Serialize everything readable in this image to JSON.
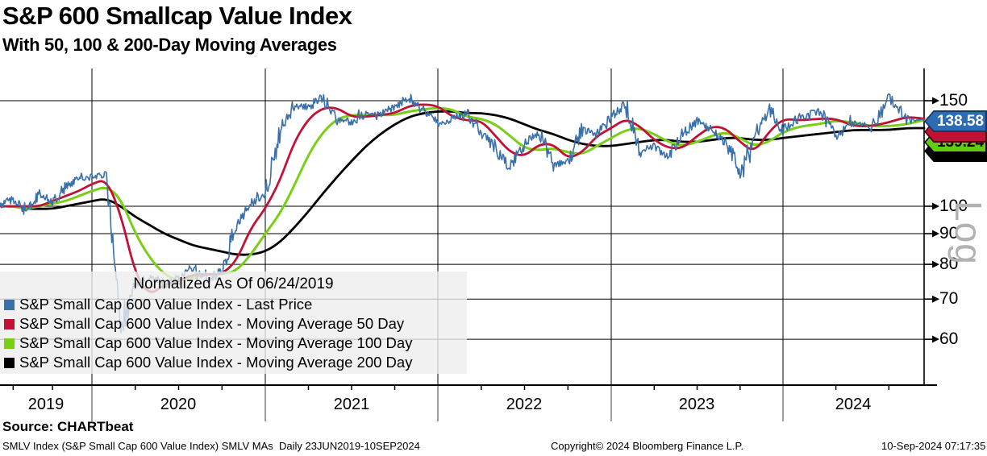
{
  "title": "S&P 600 Smallcap Value Index",
  "subtitle": "With 50, 100 & 200-Day Moving Averages",
  "source_label": "Source: CHARTbeat",
  "footer": {
    "left": "SMLV Index (S&P Small Cap 600 Value Index) SMLV MAs  Daily 23JUN2019-10SEP2024",
    "center": "Copyright© 2024 Bloomberg Finance L.P.",
    "right": "10-Sep-2024 07:17:35"
  },
  "axis": {
    "scale_label": "Log",
    "y_ticks": [
      "150",
      "100",
      "90",
      "80",
      "70",
      "60"
    ],
    "x_labels": [
      "2019",
      "2020",
      "2021",
      "2022",
      "2023",
      "2024"
    ]
  },
  "legend": {
    "header": "Normalized As Of 06/24/2019",
    "items": [
      {
        "label": "S&P Small Cap 600 Value Index - Last Price",
        "color": "#3a70a9"
      },
      {
        "label": "S&P Small Cap 600 Value Index - Moving Average 50 Day",
        "color": "#c11236"
      },
      {
        "label": "S&P Small Cap 600 Value Index - Moving Average 100 Day",
        "color": "#79cf16"
      },
      {
        "label": "S&P Small Cap 600 Value Index - Moving Average 200 Day",
        "color": "#000000"
      }
    ]
  },
  "badges": [
    {
      "value": "138.58",
      "fill": "#2d6cb4",
      "border": "#0e3a66",
      "text_color": "#ffffff"
    },
    {
      "value": "",
      "fill": "#c11236",
      "border": "#40050f",
      "text_color": "#ffffff"
    },
    {
      "value": "139.24",
      "fill": "#62cc0e",
      "border": "#000000",
      "text_color": "#000000"
    },
    {
      "value": "",
      "fill": "#000000",
      "border": "#000000",
      "text_color": "#ffffff"
    }
  ],
  "chart_data": {
    "type": "line",
    "yscale": "log",
    "normalized_note": "Normalized As Of 06/24/2019 = 100",
    "date_range": "23JUN2019-10SEP2024",
    "ylim": [
      50,
      168
    ],
    "y_ticks": [
      150,
      100,
      90,
      80,
      70,
      60
    ],
    "x_year_labels": [
      "2019",
      "2020",
      "2021",
      "2022",
      "2023",
      "2024"
    ],
    "x_monthly": [
      "2019-06",
      "2019-07",
      "2019-08",
      "2019-09",
      "2019-10",
      "2019-11",
      "2019-12",
      "2020-01",
      "2020-02",
      "2020-03",
      "2020-04",
      "2020-05",
      "2020-06",
      "2020-07",
      "2020-08",
      "2020-09",
      "2020-10",
      "2020-11",
      "2020-12",
      "2021-01",
      "2021-02",
      "2021-03",
      "2021-04",
      "2021-05",
      "2021-06",
      "2021-07",
      "2021-08",
      "2021-09",
      "2021-10",
      "2021-11",
      "2021-12",
      "2022-01",
      "2022-02",
      "2022-03",
      "2022-04",
      "2022-05",
      "2022-06",
      "2022-07",
      "2022-08",
      "2022-09",
      "2022-10",
      "2022-11",
      "2022-12",
      "2023-01",
      "2023-02",
      "2023-03",
      "2023-04",
      "2023-05",
      "2023-06",
      "2023-07",
      "2023-08",
      "2023-09",
      "2023-10",
      "2023-11",
      "2023-12",
      "2024-01",
      "2024-02",
      "2024-03",
      "2024-04",
      "2024-05",
      "2024-06",
      "2024-07",
      "2024-08",
      "2024-09"
    ],
    "series": [
      {
        "name": "S&P Small Cap 600 Value Index - Last Price",
        "color": "#3a70a9",
        "width": 1.6,
        "jitter": true,
        "values": [
          100,
          103,
          97,
          105,
          101,
          108,
          111,
          112,
          113,
          62,
          73,
          77,
          74,
          76,
          79,
          75,
          78,
          93,
          101,
          105,
          133,
          147,
          146,
          152,
          140,
          138,
          143,
          142,
          147,
          152,
          144,
          137,
          140,
          143,
          133,
          124,
          116,
          127,
          133,
          117,
          119,
          135,
          131,
          141,
          148,
          124,
          126,
          121,
          132,
          139,
          134,
          128,
          115,
          131,
          146,
          134,
          141,
          144,
          131,
          138,
          135,
          152,
          140,
          138.58
        ]
      },
      {
        "name": "S&P Small Cap 600 Value Index - Moving Average 50 Day",
        "color": "#c11236",
        "width": 2.8,
        "jitter": false,
        "values": [
          100,
          100,
          100,
          100,
          102,
          104,
          106,
          109,
          111,
          97,
          77,
          71,
          74,
          75,
          77,
          77,
          77,
          81,
          92,
          99,
          110,
          128,
          140,
          146,
          146,
          141,
          141,
          142,
          143,
          147,
          148,
          147,
          141,
          139,
          139,
          131,
          123,
          121,
          127,
          127,
          120,
          123,
          131,
          135,
          140,
          136,
          129,
          125,
          125,
          131,
          136,
          135,
          128,
          123,
          133,
          140,
          139,
          140,
          140,
          136,
          136,
          138,
          141,
          140
        ]
      },
      {
        "name": "S&P Small Cap 600 Value Index - Moving Average 100 Day",
        "color": "#79cf16",
        "width": 3,
        "jitter": false,
        "values": [
          100,
          100,
          99,
          100,
          101,
          102,
          104,
          106,
          108,
          103,
          90,
          82,
          77,
          75,
          76,
          77,
          77,
          78,
          83,
          90,
          97,
          108,
          122,
          133,
          140,
          142,
          142,
          142,
          142,
          144,
          145,
          146,
          145,
          141,
          140,
          137,
          131,
          125,
          124,
          125,
          123,
          122,
          126,
          130,
          134,
          135,
          132,
          128,
          126,
          128,
          131,
          133,
          130,
          126,
          128,
          133,
          136,
          137,
          139,
          138,
          136,
          136,
          137,
          139.24
        ]
      },
      {
        "name": "S&P Small Cap 600 Value Index - Moving Average 200 Day",
        "color": "#000000",
        "width": 2.8,
        "jitter": false,
        "values": [
          100,
          100,
          99,
          99,
          99,
          100,
          101,
          102,
          103,
          100,
          96,
          93,
          90,
          88,
          86,
          85,
          84,
          83,
          83,
          84,
          87,
          92,
          98,
          105,
          112,
          119,
          126,
          132,
          137,
          141,
          143,
          144,
          144,
          143,
          143,
          142,
          140,
          137,
          134,
          132,
          129,
          127,
          126,
          126,
          127,
          128,
          129,
          129,
          128,
          128,
          129,
          130,
          130,
          129,
          129,
          130,
          131,
          132,
          133,
          134,
          134,
          134,
          135,
          135
        ]
      }
    ],
    "last_values": {
      "last_price": "138.58",
      "ma_100_day": "139.24"
    }
  }
}
